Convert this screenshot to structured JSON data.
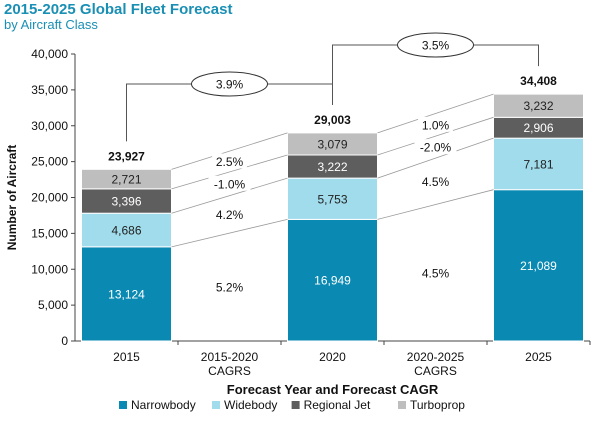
{
  "chart_data": {
    "type": "bar",
    "stacked": true,
    "title": "2015-2025 Global Fleet Forecast",
    "subtitle": "by Aircraft Class",
    "xlabel": "Forecast Year and Forecast CAGR",
    "ylabel": "Number of Aircraft",
    "ylim": [
      0,
      40000
    ],
    "y_ticks": [
      "0",
      "5,000",
      "10,000",
      "15,000",
      "20,000",
      "25,000",
      "30,000",
      "35,000",
      "40,000"
    ],
    "y_tick_values": [
      0,
      5000,
      10000,
      15000,
      20000,
      25000,
      30000,
      35000,
      40000
    ],
    "grid": false,
    "legend_position": "bottom",
    "categories": [
      "2015",
      "2015-2020 CAGRS",
      "2020",
      "2020-2025 CAGRS",
      "2025"
    ],
    "category_labels": [
      [
        "2015"
      ],
      [
        "2015-2020",
        "CAGRS"
      ],
      [
        "2020"
      ],
      [
        "2020-2025",
        "CAGRS"
      ],
      [
        "2025"
      ]
    ],
    "series": [
      {
        "name": "Narrowbody",
        "color": "#0a8ab3",
        "values": [
          13124,
          null,
          16949,
          null,
          21089
        ],
        "labels": [
          "13,124",
          "",
          "16,949",
          "",
          "21,089"
        ]
      },
      {
        "name": "Widebody",
        "color": "#a0dceb",
        "values": [
          4686,
          null,
          5753,
          null,
          7181
        ],
        "labels": [
          "4,686",
          "",
          "5,753",
          "",
          "7,181"
        ]
      },
      {
        "name": "Regional Jet",
        "color": "#5e5e5e",
        "values": [
          3396,
          null,
          3222,
          null,
          2906
        ],
        "labels": [
          "3,396",
          "",
          "3,222",
          "",
          "2,906"
        ]
      },
      {
        "name": "Turboprop",
        "color": "#bebebe",
        "values": [
          2721,
          null,
          3079,
          null,
          3232
        ],
        "labels": [
          "2,721",
          "",
          "3,079",
          "",
          "3,232"
        ]
      }
    ],
    "totals": [
      23927,
      null,
      29003,
      null,
      34408
    ],
    "total_labels": [
      "23,927",
      "",
      "29,003",
      "",
      "34,408"
    ],
    "cagr": [
      {
        "period": "2015-2020",
        "values": [
          "5.2%",
          "4.2%",
          "-1.0%",
          "2.5%"
        ]
      },
      {
        "period": "2020-2025",
        "values": [
          "4.5%",
          "4.5%",
          "-2.0%",
          "1.0%"
        ]
      }
    ],
    "overall_cagr": [
      {
        "from": "2015",
        "to": "2020",
        "label": "3.9%"
      },
      {
        "from": "2020",
        "to": "2025",
        "label": "3.5%"
      }
    ]
  }
}
